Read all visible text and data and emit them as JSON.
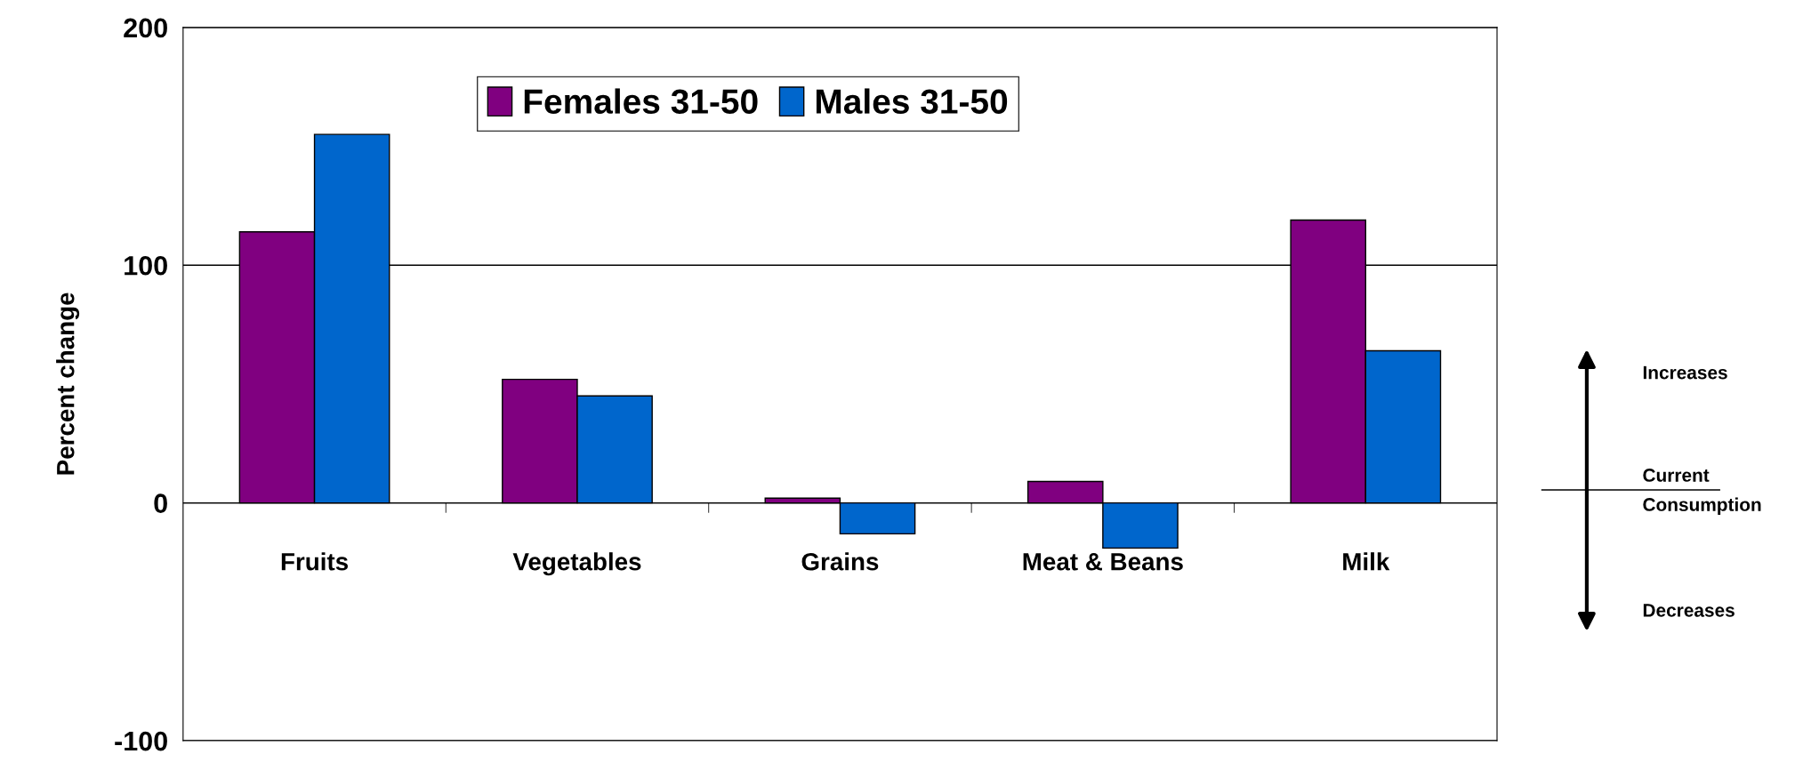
{
  "chart_data": {
    "type": "bar",
    "ylabel": "Percent change",
    "categories": [
      "Fruits",
      "Vegetables",
      "Grains",
      "Meat & Beans",
      "Milk"
    ],
    "series": [
      {
        "name": "Females 31-50",
        "color": "#800080",
        "values": [
          114,
          52,
          2,
          9,
          119
        ]
      },
      {
        "name": "Males 31-50",
        "color": "#0066cc",
        "values": [
          155,
          45,
          -13,
          -19,
          64
        ]
      }
    ],
    "ylim": [
      -100,
      200
    ],
    "yticks": [
      -100,
      0,
      100,
      200
    ],
    "grid": "y",
    "legend": "top",
    "annotations": [
      "Increases",
      "Current\nConsumption",
      "Decreases"
    ]
  }
}
